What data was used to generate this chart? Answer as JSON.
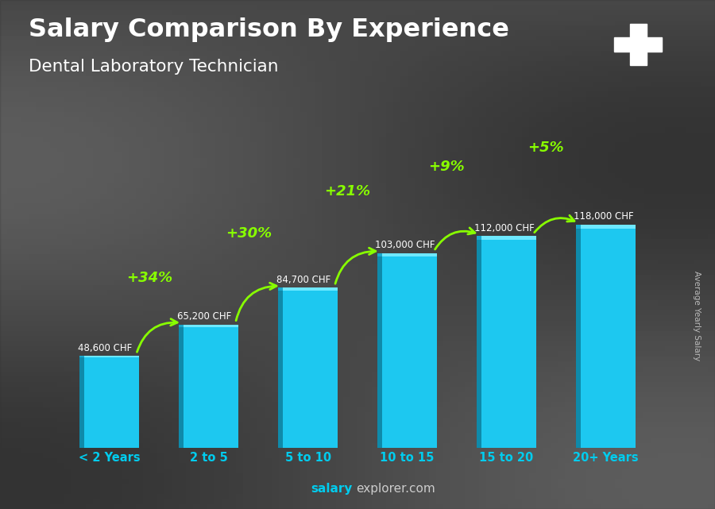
{
  "title_line1": "Salary Comparison By Experience",
  "title_line2": "Dental Laboratory Technician",
  "categories": [
    "< 2 Years",
    "2 to 5",
    "5 to 10",
    "10 to 15",
    "15 to 20",
    "20+ Years"
  ],
  "values": [
    48600,
    65200,
    84700,
    103000,
    112000,
    118000
  ],
  "value_labels": [
    "48,600 CHF",
    "65,200 CHF",
    "84,700 CHF",
    "103,000 CHF",
    "112,000 CHF",
    "118,000 CHF"
  ],
  "pct_labels": [
    null,
    "+34%",
    "+30%",
    "+21%",
    "+9%",
    "+5%"
  ],
  "bar_color_main": "#1dc8f0",
  "bar_color_left": "#0f8aaa",
  "bar_color_highlight": "#6ee8ff",
  "bg_color": "#555555",
  "title_color": "#ffffff",
  "subtitle_color": "#ffffff",
  "value_label_color": "#ffffff",
  "pct_color": "#88ff00",
  "xticklabel_color": "#00ccee",
  "watermark_main": "explorer.com",
  "watermark_salary": "salary",
  "ylabel_text": "Average Yearly Salary",
  "ylim": [
    0,
    148000
  ],
  "bar_width": 0.6,
  "flag_color": "#cc0000"
}
